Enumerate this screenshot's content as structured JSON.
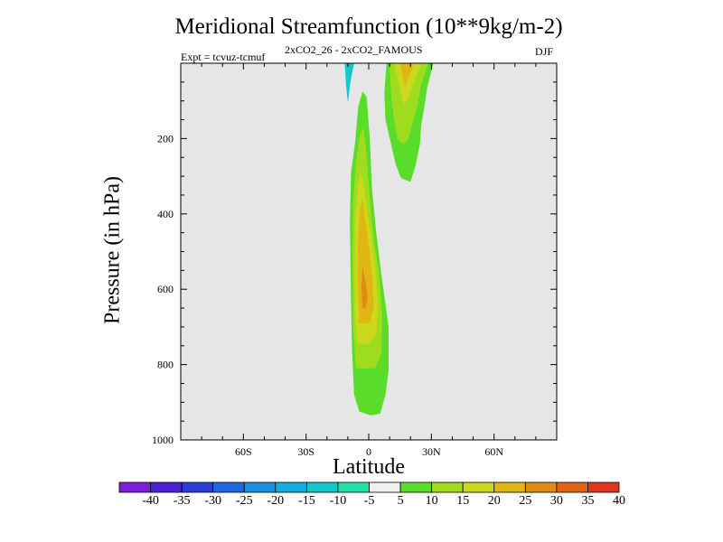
{
  "chart_data": {
    "type": "contour",
    "title": "Meridional Streamfunction (10**9kg/m-2)",
    "subtitle": "Expt = tcvuz-tcmuf",
    "subtitle2": "2xCO2_26 - 2xCO2_FAMOUS",
    "season": "DJF",
    "xlabel": "Latitude",
    "ylabel": "Pressure (in hPa)",
    "xlim": [
      -90,
      90
    ],
    "ylim": [
      1000,
      0
    ],
    "x_ticks": [
      {
        "value": -60,
        "label": "60S"
      },
      {
        "value": -30,
        "label": "30S"
      },
      {
        "value": 0,
        "label": "0"
      },
      {
        "value": 30,
        "label": "30N"
      },
      {
        "value": 60,
        "label": "60N"
      }
    ],
    "y_ticks": [
      {
        "value": 200,
        "label": "200"
      },
      {
        "value": 400,
        "label": "400"
      },
      {
        "value": 600,
        "label": "600"
      },
      {
        "value": 800,
        "label": "800"
      },
      {
        "value": 1000,
        "label": "1000"
      }
    ],
    "background_color": "#e6e6e6",
    "colorbar": {
      "labels": [
        "-40",
        "-35",
        "-30",
        "-25",
        "-20",
        "-15",
        "-10",
        "-5",
        "5",
        "10",
        "15",
        "20",
        "25",
        "30",
        "35",
        "40"
      ],
      "colors": [
        "#7d1fd9",
        "#4a1fd6",
        "#2a3fd8",
        "#1f68e0",
        "#1a90e0",
        "#12aee0",
        "#12c8c8",
        "#22dfa8",
        "#f0f0f0",
        "#5adc2a",
        "#a0dc1e",
        "#ccd81c",
        "#e0b514",
        "#e08c14",
        "#e06414",
        "#e0361e"
      ]
    },
    "regions": [
      {
        "level": "10 to 15",
        "color": "#5adc2a",
        "outline": [
          [
            -4.5,
            925
          ],
          [
            -7,
            880
          ],
          [
            -8,
            760
          ],
          [
            -8.5,
            630
          ],
          [
            -9,
            420
          ],
          [
            -8.5,
            290
          ],
          [
            -6.5,
            210
          ],
          [
            -5,
            115
          ],
          [
            -3,
            75
          ],
          [
            -1,
            90
          ],
          [
            0.5,
            200
          ],
          [
            1.5,
            330
          ],
          [
            3.5,
            445
          ],
          [
            6,
            560
          ],
          [
            9.5,
            700
          ],
          [
            9.5,
            815
          ],
          [
            8,
            880
          ],
          [
            5.5,
            930
          ],
          [
            1,
            935
          ]
        ]
      },
      {
        "level": "15 to 20",
        "color": "#a0dc1e",
        "outline": [
          [
            -6,
            810
          ],
          [
            -7.5,
            700
          ],
          [
            -7.8,
            530
          ],
          [
            -7.5,
            370
          ],
          [
            -6,
            260
          ],
          [
            -4.2,
            190
          ],
          [
            -2.5,
            170
          ],
          [
            -1,
            245
          ],
          [
            0.5,
            360
          ],
          [
            2.5,
            470
          ],
          [
            5,
            560
          ],
          [
            6.5,
            670
          ],
          [
            6,
            770
          ],
          [
            3,
            810
          ]
        ]
      },
      {
        "level": "20 to 25",
        "color": "#ccd81c",
        "outline": [
          [
            -5.5,
            745
          ],
          [
            -6.5,
            670
          ],
          [
            -6.8,
            570
          ],
          [
            -6.5,
            420
          ],
          [
            -5.2,
            330
          ],
          [
            -3.8,
            290
          ],
          [
            -2.3,
            325
          ],
          [
            -0.5,
            400
          ],
          [
            1.5,
            470
          ],
          [
            3.5,
            560
          ],
          [
            4.5,
            655
          ],
          [
            3.5,
            720
          ],
          [
            0,
            745
          ]
        ]
      },
      {
        "level": "25 to 30",
        "color": "#e0b514",
        "outline": [
          [
            -4.5,
            690
          ],
          [
            -5.2,
            600
          ],
          [
            -5.2,
            490
          ],
          [
            -4.5,
            400
          ],
          [
            -3,
            360
          ],
          [
            -1.8,
            410
          ],
          [
            0.5,
            500
          ],
          [
            2,
            590
          ],
          [
            2.3,
            650
          ],
          [
            0.5,
            690
          ]
        ]
      },
      {
        "level": "30 to 35",
        "color": "#e08c14",
        "outline": [
          [
            -3,
            650
          ],
          [
            -3.5,
            590
          ],
          [
            -3,
            540
          ],
          [
            -1.5,
            580
          ],
          [
            -0.5,
            620
          ],
          [
            -1.5,
            650
          ]
        ]
      },
      {
        "level": "10 to 15",
        "color": "#5adc2a",
        "outline": [
          [
            8.5,
            0
          ],
          [
            31,
            0
          ],
          [
            28,
            65
          ],
          [
            26.5,
            120
          ],
          [
            25,
            170
          ],
          [
            24.5,
            215
          ],
          [
            22.5,
            270
          ],
          [
            20,
            315
          ],
          [
            15.5,
            305
          ],
          [
            13,
            270
          ],
          [
            10.5,
            210
          ],
          [
            8,
            150
          ],
          [
            7.5,
            80
          ]
        ]
      },
      {
        "level": "15 to 20",
        "color": "#a0dc1e",
        "outline": [
          [
            10,
            0
          ],
          [
            28.5,
            0
          ],
          [
            25,
            60
          ],
          [
            23,
            120
          ],
          [
            21,
            160
          ],
          [
            19,
            200
          ],
          [
            16.5,
            215
          ],
          [
            13.8,
            200
          ],
          [
            12.2,
            150
          ],
          [
            10.8,
            90
          ]
        ]
      },
      {
        "level": "20 to 25",
        "color": "#ccd81c",
        "outline": [
          [
            12,
            0
          ],
          [
            25,
            0
          ],
          [
            22,
            45
          ],
          [
            19.5,
            85
          ],
          [
            17,
            110
          ],
          [
            15.5,
            80
          ],
          [
            13.8,
            40
          ]
        ]
      },
      {
        "level": "25 to 30",
        "color": "#e0b514",
        "outline": [
          [
            15,
            0
          ],
          [
            21.5,
            0
          ],
          [
            19.5,
            30
          ],
          [
            17.5,
            60
          ],
          [
            16,
            30
          ]
        ]
      },
      {
        "level": "-10 to -5",
        "color": "#12c8c8",
        "outline": [
          [
            -11.5,
            0
          ],
          [
            -7,
            0
          ],
          [
            -8.8,
            50
          ],
          [
            -10,
            105
          ],
          [
            -10.8,
            60
          ]
        ]
      }
    ]
  }
}
